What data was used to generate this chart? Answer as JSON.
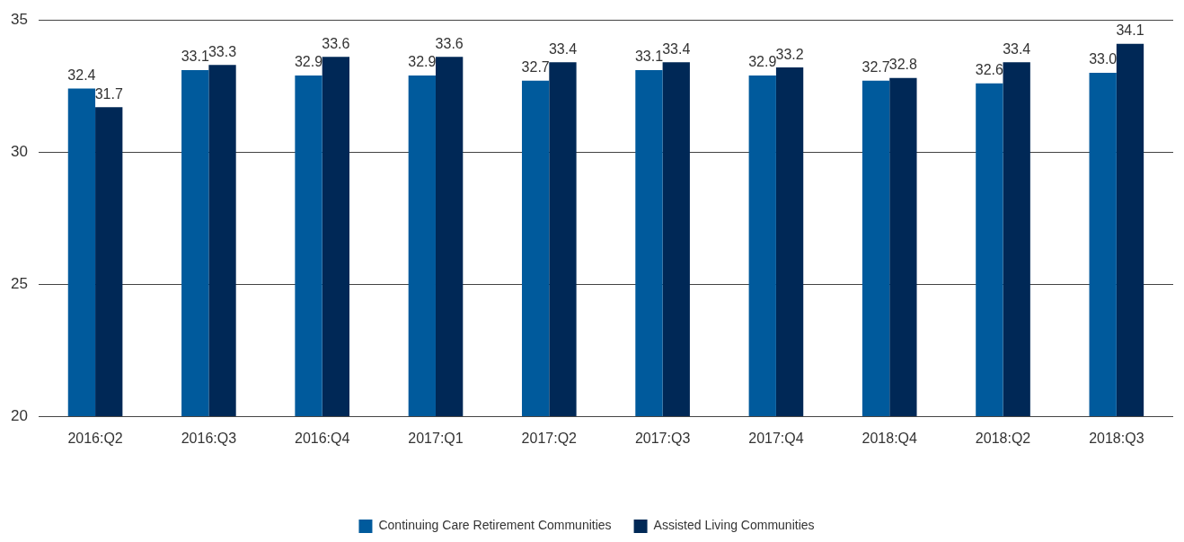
{
  "chart_data": {
    "type": "bar",
    "categories": [
      "2016:Q2",
      "2016:Q3",
      "2016:Q4",
      "2017:Q1",
      "2017:Q2",
      "2017:Q3",
      "2017:Q4",
      "2018:Q4",
      "2018:Q2",
      "2018:Q3"
    ],
    "series": [
      {
        "name": "Continuing Care Retirement Communities",
        "color": "#005a9c",
        "values": [
          32.4,
          33.1,
          32.9,
          32.9,
          32.7,
          33.1,
          32.9,
          32.7,
          32.6,
          33.0
        ],
        "value_labels": [
          "32.4",
          "33.1",
          "32.9",
          "32.9",
          "32.7",
          "33.1",
          "32.9",
          "32.7",
          "32.6",
          "33.0"
        ]
      },
      {
        "name": "Assisted Living Communities",
        "color": "#002856",
        "values": [
          31.7,
          33.3,
          33.6,
          33.6,
          33.4,
          33.4,
          33.2,
          32.8,
          33.4,
          34.1
        ],
        "value_labels": [
          "31.7",
          "33.3",
          "33.6",
          "33.6",
          "33.4",
          "33.4",
          "33.2",
          "32.8",
          "33.4",
          "34.1"
        ]
      }
    ],
    "ylim": [
      20,
      35
    ],
    "yticks": [
      20,
      25,
      30,
      35
    ],
    "grid": "y",
    "legend": "bottom"
  }
}
